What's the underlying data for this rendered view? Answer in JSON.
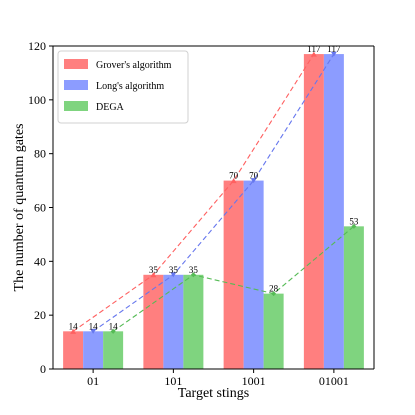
{
  "chart_data": {
    "type": "bar",
    "title": "",
    "xlabel": "Target stings",
    "ylabel": "The number of quantum gates",
    "categories": [
      "01",
      "101",
      "1001",
      "01001"
    ],
    "ylim": [
      0,
      120
    ],
    "yticks": [
      0,
      20,
      40,
      60,
      80,
      100,
      120
    ],
    "grid": false,
    "legend_position": "top-left",
    "series": [
      {
        "name": "Grover's algorithm",
        "values": [
          14,
          35,
          70,
          117
        ],
        "color": "#ff7f7f",
        "trend_color": "#ff6060"
      },
      {
        "name": "Long's algorithm",
        "values": [
          14,
          35,
          70,
          117
        ],
        "color": "#8c9cff",
        "trend_color": "#6677ee"
      },
      {
        "name": "DEGA",
        "values": [
          14,
          35,
          28,
          53
        ],
        "color": "#7fd47f",
        "trend_color": "#55bb55"
      }
    ]
  }
}
